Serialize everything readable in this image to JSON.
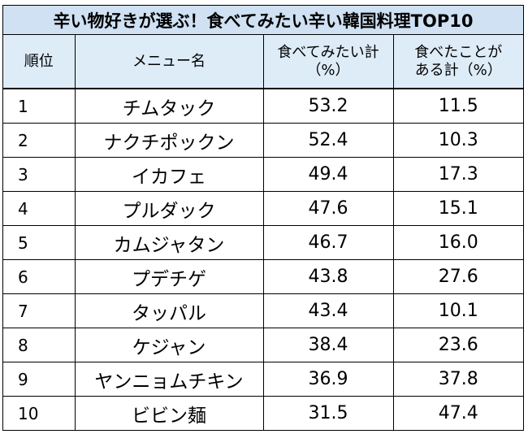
{
  "title": "辛い物好きが選ぶ！食べてみたい辛い韓国料理TOP10",
  "header": {
    "rank": "順位",
    "menu": "メニュー名",
    "want_line1": "食べてみたい計",
    "want_line2": "（%）",
    "eaten_line1": "食べたことが",
    "eaten_line2": "ある計（%）"
  },
  "rows": [
    {
      "rank": "1",
      "menu": "チムタック",
      "want": "53.2",
      "eaten": "11.5"
    },
    {
      "rank": "2",
      "menu": "ナクチポックン",
      "want": "52.4",
      "eaten": "10.3"
    },
    {
      "rank": "3",
      "menu": "イカフェ",
      "want": "49.4",
      "eaten": "17.3"
    },
    {
      "rank": "4",
      "menu": "プルダック",
      "want": "47.6",
      "eaten": "15.1"
    },
    {
      "rank": "5",
      "menu": "カムジャタン",
      "want": "46.7",
      "eaten": "16.0"
    },
    {
      "rank": "6",
      "menu": "プデチゲ",
      "want": "43.8",
      "eaten": "27.6"
    },
    {
      "rank": "7",
      "menu": "タッパル",
      "want": "43.4",
      "eaten": "10.1"
    },
    {
      "rank": "8",
      "menu": "ケジャン",
      "want": "38.4",
      "eaten": "23.6"
    },
    {
      "rank": "9",
      "menu": "ヤンニョムチキン",
      "want": "36.9",
      "eaten": "37.8"
    },
    {
      "rank": "10",
      "menu": "ビビン麺",
      "want": "31.5",
      "eaten": "47.4"
    }
  ],
  "colors": {
    "title_bg": "#cfe1f3",
    "header_bg": "#deecf8",
    "border": "#000000"
  }
}
